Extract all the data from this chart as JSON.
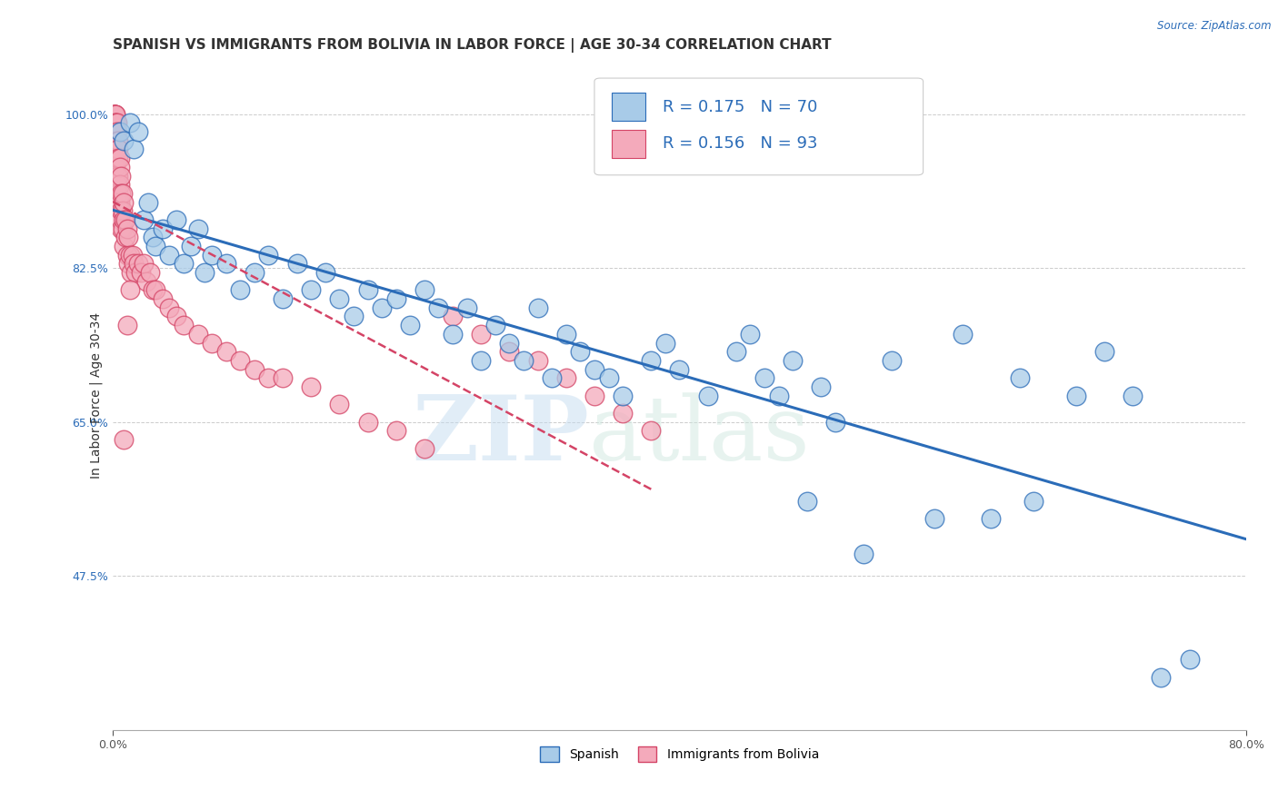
{
  "title": "SPANISH VS IMMIGRANTS FROM BOLIVIA IN LABOR FORCE | AGE 30-34 CORRELATION CHART",
  "source": "Source: ZipAtlas.com",
  "ylabel": "In Labor Force | Age 30-34",
  "xlim": [
    0.0,
    0.8
  ],
  "ylim": [
    0.3,
    1.06
  ],
  "ytick_positions": [
    0.475,
    0.65,
    0.825,
    1.0
  ],
  "ytick_labels": [
    "47.5%",
    "65.0%",
    "82.5%",
    "100.0%"
  ],
  "legend_r_blue": "R = 0.175",
  "legend_n_blue": "N = 70",
  "legend_r_pink": "R = 0.156",
  "legend_n_pink": "N = 93",
  "legend_label_blue": "Spanish",
  "legend_label_pink": "Immigrants from Bolivia",
  "blue_color": "#A8CBE8",
  "pink_color": "#F4AABB",
  "trend_blue_color": "#2B6CB8",
  "trend_pink_color": "#D44466",
  "watermark_zip": "ZIP",
  "watermark_atlas": "atlas",
  "title_fontsize": 11,
  "axis_label_fontsize": 10,
  "tick_label_fontsize": 9,
  "blue_scatter_x": [
    0.005,
    0.008,
    0.012,
    0.015,
    0.018,
    0.022,
    0.025,
    0.028,
    0.03,
    0.035,
    0.04,
    0.045,
    0.05,
    0.055,
    0.06,
    0.065,
    0.07,
    0.08,
    0.09,
    0.1,
    0.11,
    0.12,
    0.13,
    0.14,
    0.15,
    0.16,
    0.17,
    0.18,
    0.19,
    0.2,
    0.21,
    0.22,
    0.23,
    0.24,
    0.25,
    0.26,
    0.27,
    0.28,
    0.29,
    0.3,
    0.31,
    0.32,
    0.33,
    0.34,
    0.35,
    0.36,
    0.38,
    0.39,
    0.4,
    0.42,
    0.44,
    0.45,
    0.46,
    0.47,
    0.48,
    0.49,
    0.5,
    0.51,
    0.53,
    0.55,
    0.58,
    0.6,
    0.62,
    0.64,
    0.65,
    0.68,
    0.7,
    0.72,
    0.74,
    0.76
  ],
  "blue_scatter_y": [
    0.98,
    0.97,
    0.99,
    0.96,
    0.98,
    0.88,
    0.9,
    0.86,
    0.85,
    0.87,
    0.84,
    0.88,
    0.83,
    0.85,
    0.87,
    0.82,
    0.84,
    0.83,
    0.8,
    0.82,
    0.84,
    0.79,
    0.83,
    0.8,
    0.82,
    0.79,
    0.77,
    0.8,
    0.78,
    0.79,
    0.76,
    0.8,
    0.78,
    0.75,
    0.78,
    0.72,
    0.76,
    0.74,
    0.72,
    0.78,
    0.7,
    0.75,
    0.73,
    0.71,
    0.7,
    0.68,
    0.72,
    0.74,
    0.71,
    0.68,
    0.73,
    0.75,
    0.7,
    0.68,
    0.72,
    0.56,
    0.69,
    0.65,
    0.5,
    0.72,
    0.54,
    0.75,
    0.54,
    0.7,
    0.56,
    0.68,
    0.73,
    0.68,
    0.36,
    0.38
  ],
  "pink_scatter_x": [
    0.001,
    0.001,
    0.001,
    0.001,
    0.001,
    0.001,
    0.001,
    0.001,
    0.001,
    0.001,
    0.002,
    0.002,
    0.002,
    0.002,
    0.002,
    0.002,
    0.002,
    0.002,
    0.002,
    0.002,
    0.003,
    0.003,
    0.003,
    0.003,
    0.003,
    0.003,
    0.003,
    0.004,
    0.004,
    0.004,
    0.004,
    0.004,
    0.004,
    0.005,
    0.005,
    0.005,
    0.005,
    0.005,
    0.006,
    0.006,
    0.006,
    0.006,
    0.007,
    0.007,
    0.007,
    0.008,
    0.008,
    0.008,
    0.009,
    0.009,
    0.01,
    0.01,
    0.011,
    0.011,
    0.012,
    0.013,
    0.014,
    0.015,
    0.016,
    0.018,
    0.02,
    0.022,
    0.024,
    0.026,
    0.028,
    0.03,
    0.035,
    0.04,
    0.045,
    0.05,
    0.06,
    0.07,
    0.08,
    0.09,
    0.1,
    0.11,
    0.12,
    0.14,
    0.16,
    0.18,
    0.2,
    0.22,
    0.24,
    0.26,
    0.28,
    0.3,
    0.32,
    0.34,
    0.36,
    0.38,
    0.01,
    0.012,
    0.008
  ],
  "pink_scatter_y": [
    1.0,
    1.0,
    1.0,
    1.0,
    0.99,
    0.99,
    0.99,
    0.98,
    0.98,
    0.97,
    1.0,
    1.0,
    0.99,
    0.99,
    0.98,
    0.98,
    0.97,
    0.96,
    0.95,
    0.94,
    0.99,
    0.98,
    0.97,
    0.96,
    0.95,
    0.93,
    0.92,
    0.97,
    0.96,
    0.95,
    0.93,
    0.91,
    0.9,
    0.95,
    0.94,
    0.92,
    0.9,
    0.88,
    0.93,
    0.91,
    0.89,
    0.87,
    0.91,
    0.89,
    0.87,
    0.9,
    0.88,
    0.85,
    0.88,
    0.86,
    0.87,
    0.84,
    0.86,
    0.83,
    0.84,
    0.82,
    0.84,
    0.83,
    0.82,
    0.83,
    0.82,
    0.83,
    0.81,
    0.82,
    0.8,
    0.8,
    0.79,
    0.78,
    0.77,
    0.76,
    0.75,
    0.74,
    0.73,
    0.72,
    0.71,
    0.7,
    0.7,
    0.69,
    0.67,
    0.65,
    0.64,
    0.62,
    0.77,
    0.75,
    0.73,
    0.72,
    0.7,
    0.68,
    0.66,
    0.64,
    0.76,
    0.8,
    0.63
  ]
}
